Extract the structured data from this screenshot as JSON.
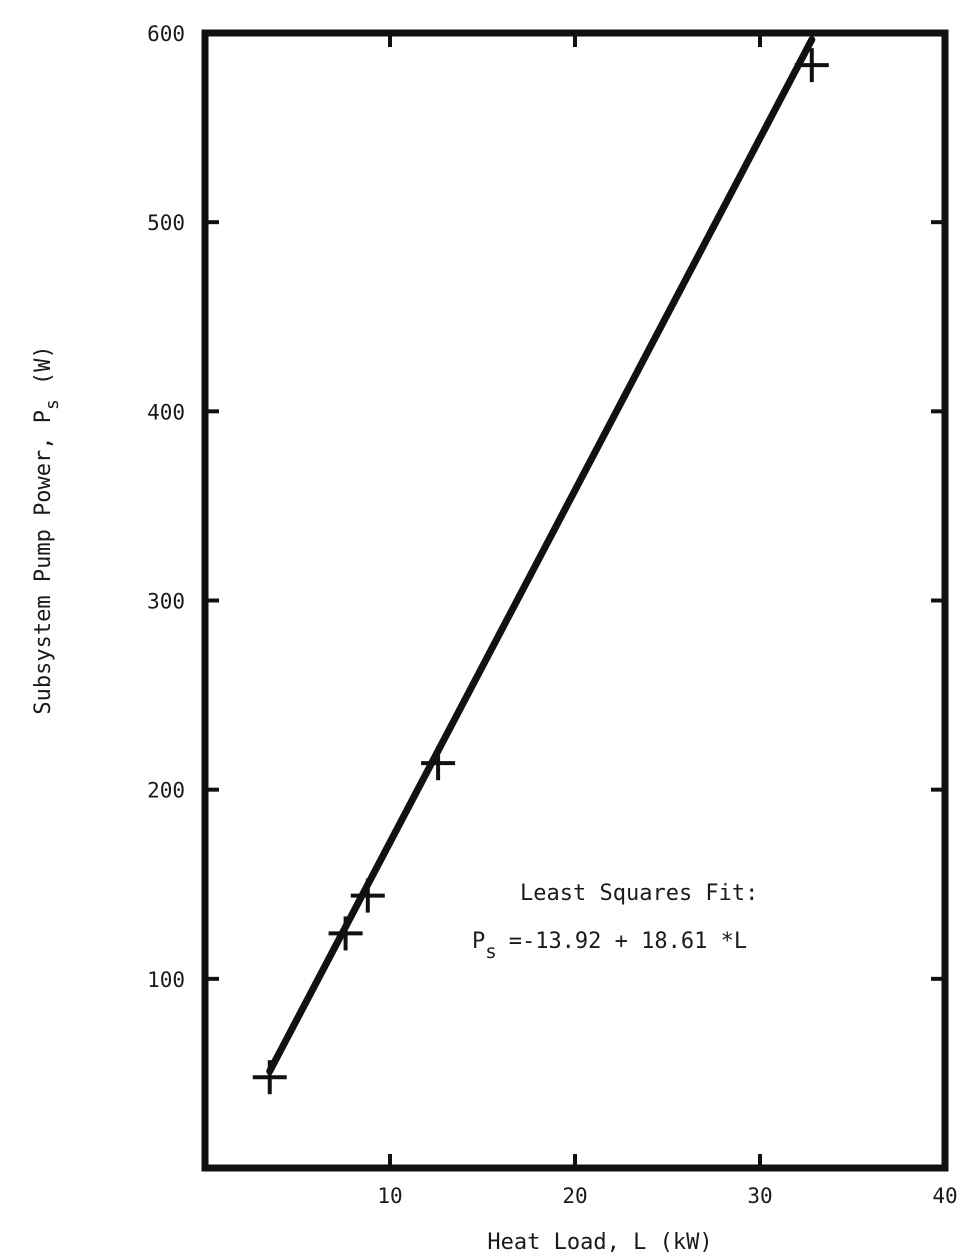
{
  "chart_data": {
    "type": "scatter",
    "title": "",
    "xlabel": "Heat Load, L (kW)",
    "ylabel_main": "Subsystem Pump Power, P",
    "ylabel_sub": "s",
    "ylabel_unit": "(W)",
    "xlim": [
      0,
      40
    ],
    "ylim": [
      0,
      600
    ],
    "x_ticks": [
      10,
      20,
      30,
      40
    ],
    "y_ticks": [
      100,
      200,
      300,
      400,
      500,
      600
    ],
    "grid": false,
    "points": [
      {
        "x": 3.5,
        "y": 48
      },
      {
        "x": 7.6,
        "y": 124
      },
      {
        "x": 8.8,
        "y": 144
      },
      {
        "x": 12.6,
        "y": 214
      },
      {
        "x": 32.8,
        "y": 583
      }
    ],
    "fit": {
      "intercept": -13.92,
      "slope": 18.61,
      "x_range": [
        3.5,
        32.8
      ]
    },
    "annotation": {
      "line1": "Least Squares Fit:",
      "lhs_main": "P",
      "lhs_sub": "s",
      "rhs": "=-13.92 + 18.61 *L"
    }
  }
}
